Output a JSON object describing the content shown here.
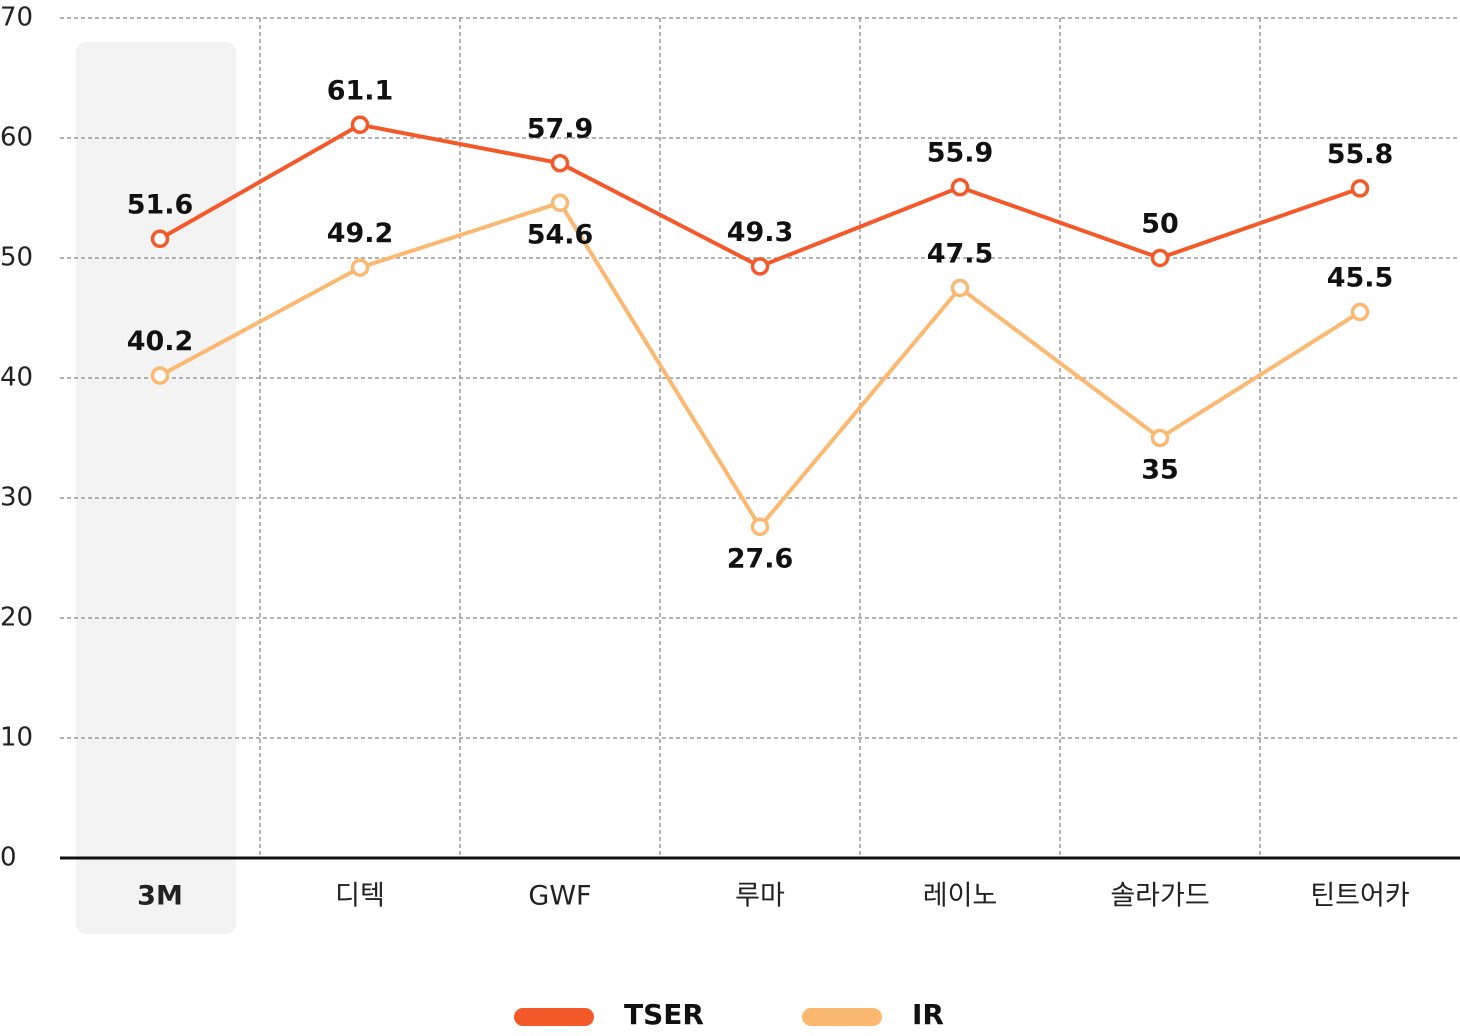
{
  "chart_data": {
    "type": "line",
    "categories": [
      "3M",
      "디텍",
      "GWF",
      "루마",
      "레이노",
      "솔라가드",
      "틴트어카"
    ],
    "series": [
      {
        "name": "TSER",
        "color": "#f4592a",
        "values": [
          51.6,
          61.1,
          57.9,
          49.3,
          55.9,
          50,
          55.8
        ]
      },
      {
        "name": "IR",
        "color": "#fbb871",
        "values": [
          40.2,
          49.2,
          54.6,
          27.6,
          47.5,
          35,
          45.5
        ]
      }
    ],
    "ylim": [
      0,
      70
    ],
    "yticks": [
      0,
      10,
      20,
      30,
      40,
      50,
      60,
      70
    ],
    "grid": true,
    "legend": "bottom"
  }
}
